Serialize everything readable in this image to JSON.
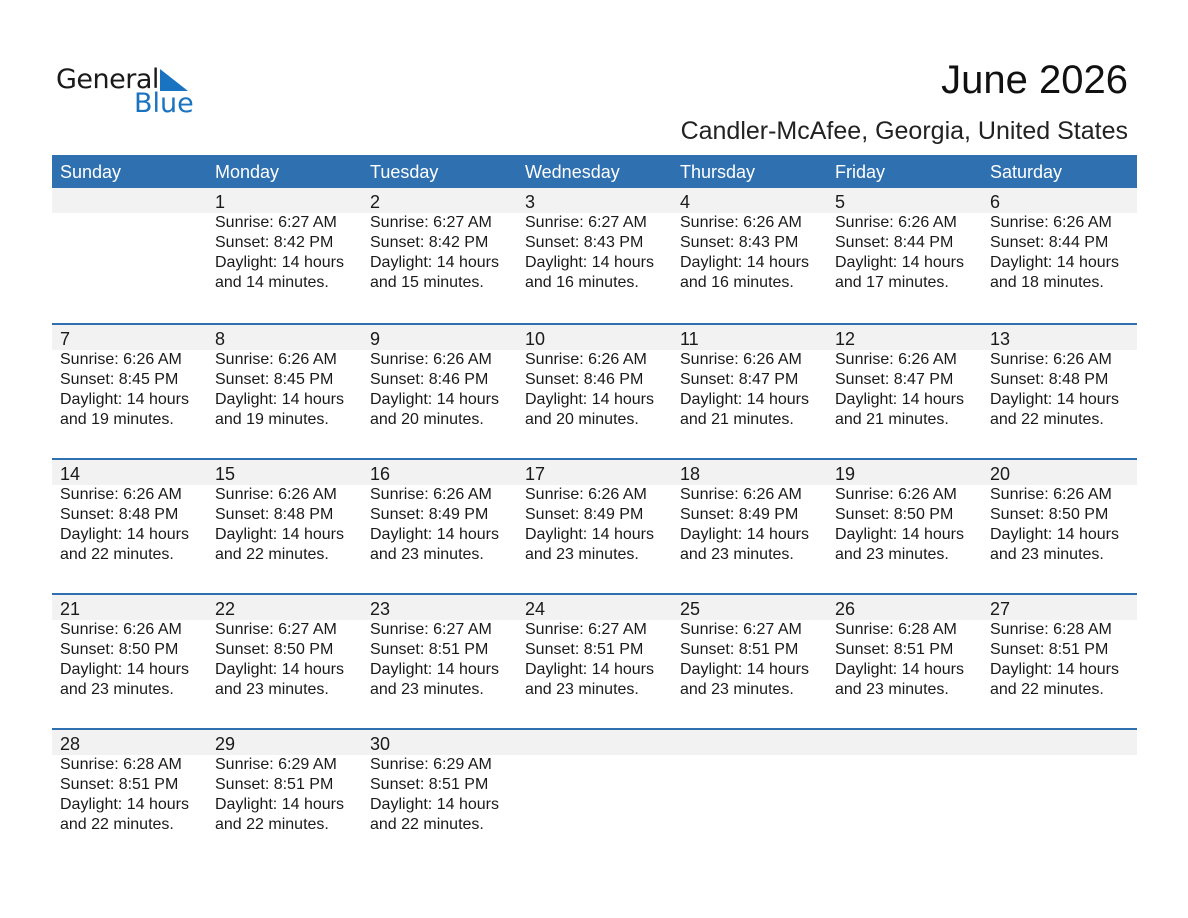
{
  "logo": {
    "general": "General",
    "blue": "Blue"
  },
  "title": "June 2026",
  "subtitle": "Candler-McAfee, Georgia, United States",
  "colors": {
    "header": "#2e70b0",
    "band": "#f2f2f2",
    "logo_blue": "#1a73c0"
  },
  "weekdays": [
    "Sunday",
    "Monday",
    "Tuesday",
    "Wednesday",
    "Thursday",
    "Friday",
    "Saturday"
  ],
  "weeks": [
    [
      null,
      {
        "day": "1",
        "sunrise": "Sunrise: 6:27 AM",
        "sunset": "Sunset: 8:42 PM",
        "daylight": "Daylight: 14 hours",
        "minutes": "and 14 minutes."
      },
      {
        "day": "2",
        "sunrise": "Sunrise: 6:27 AM",
        "sunset": "Sunset: 8:42 PM",
        "daylight": "Daylight: 14 hours",
        "minutes": "and 15 minutes."
      },
      {
        "day": "3",
        "sunrise": "Sunrise: 6:27 AM",
        "sunset": "Sunset: 8:43 PM",
        "daylight": "Daylight: 14 hours",
        "minutes": "and 16 minutes."
      },
      {
        "day": "4",
        "sunrise": "Sunrise: 6:26 AM",
        "sunset": "Sunset: 8:43 PM",
        "daylight": "Daylight: 14 hours",
        "minutes": "and 16 minutes."
      },
      {
        "day": "5",
        "sunrise": "Sunrise: 6:26 AM",
        "sunset": "Sunset: 8:44 PM",
        "daylight": "Daylight: 14 hours",
        "minutes": "and 17 minutes."
      },
      {
        "day": "6",
        "sunrise": "Sunrise: 6:26 AM",
        "sunset": "Sunset: 8:44 PM",
        "daylight": "Daylight: 14 hours",
        "minutes": "and 18 minutes."
      }
    ],
    [
      {
        "day": "7",
        "sunrise": "Sunrise: 6:26 AM",
        "sunset": "Sunset: 8:45 PM",
        "daylight": "Daylight: 14 hours",
        "minutes": "and 19 minutes."
      },
      {
        "day": "8",
        "sunrise": "Sunrise: 6:26 AM",
        "sunset": "Sunset: 8:45 PM",
        "daylight": "Daylight: 14 hours",
        "minutes": "and 19 minutes."
      },
      {
        "day": "9",
        "sunrise": "Sunrise: 6:26 AM",
        "sunset": "Sunset: 8:46 PM",
        "daylight": "Daylight: 14 hours",
        "minutes": "and 20 minutes."
      },
      {
        "day": "10",
        "sunrise": "Sunrise: 6:26 AM",
        "sunset": "Sunset: 8:46 PM",
        "daylight": "Daylight: 14 hours",
        "minutes": "and 20 minutes."
      },
      {
        "day": "11",
        "sunrise": "Sunrise: 6:26 AM",
        "sunset": "Sunset: 8:47 PM",
        "daylight": "Daylight: 14 hours",
        "minutes": "and 21 minutes."
      },
      {
        "day": "12",
        "sunrise": "Sunrise: 6:26 AM",
        "sunset": "Sunset: 8:47 PM",
        "daylight": "Daylight: 14 hours",
        "minutes": "and 21 minutes."
      },
      {
        "day": "13",
        "sunrise": "Sunrise: 6:26 AM",
        "sunset": "Sunset: 8:48 PM",
        "daylight": "Daylight: 14 hours",
        "minutes": "and 22 minutes."
      }
    ],
    [
      {
        "day": "14",
        "sunrise": "Sunrise: 6:26 AM",
        "sunset": "Sunset: 8:48 PM",
        "daylight": "Daylight: 14 hours",
        "minutes": "and 22 minutes."
      },
      {
        "day": "15",
        "sunrise": "Sunrise: 6:26 AM",
        "sunset": "Sunset: 8:48 PM",
        "daylight": "Daylight: 14 hours",
        "minutes": "and 22 minutes."
      },
      {
        "day": "16",
        "sunrise": "Sunrise: 6:26 AM",
        "sunset": "Sunset: 8:49 PM",
        "daylight": "Daylight: 14 hours",
        "minutes": "and 23 minutes."
      },
      {
        "day": "17",
        "sunrise": "Sunrise: 6:26 AM",
        "sunset": "Sunset: 8:49 PM",
        "daylight": "Daylight: 14 hours",
        "minutes": "and 23 minutes."
      },
      {
        "day": "18",
        "sunrise": "Sunrise: 6:26 AM",
        "sunset": "Sunset: 8:49 PM",
        "daylight": "Daylight: 14 hours",
        "minutes": "and 23 minutes."
      },
      {
        "day": "19",
        "sunrise": "Sunrise: 6:26 AM",
        "sunset": "Sunset: 8:50 PM",
        "daylight": "Daylight: 14 hours",
        "minutes": "and 23 minutes."
      },
      {
        "day": "20",
        "sunrise": "Sunrise: 6:26 AM",
        "sunset": "Sunset: 8:50 PM",
        "daylight": "Daylight: 14 hours",
        "minutes": "and 23 minutes."
      }
    ],
    [
      {
        "day": "21",
        "sunrise": "Sunrise: 6:26 AM",
        "sunset": "Sunset: 8:50 PM",
        "daylight": "Daylight: 14 hours",
        "minutes": "and 23 minutes."
      },
      {
        "day": "22",
        "sunrise": "Sunrise: 6:27 AM",
        "sunset": "Sunset: 8:50 PM",
        "daylight": "Daylight: 14 hours",
        "minutes": "and 23 minutes."
      },
      {
        "day": "23",
        "sunrise": "Sunrise: 6:27 AM",
        "sunset": "Sunset: 8:51 PM",
        "daylight": "Daylight: 14 hours",
        "minutes": "and 23 minutes."
      },
      {
        "day": "24",
        "sunrise": "Sunrise: 6:27 AM",
        "sunset": "Sunset: 8:51 PM",
        "daylight": "Daylight: 14 hours",
        "minutes": "and 23 minutes."
      },
      {
        "day": "25",
        "sunrise": "Sunrise: 6:27 AM",
        "sunset": "Sunset: 8:51 PM",
        "daylight": "Daylight: 14 hours",
        "minutes": "and 23 minutes."
      },
      {
        "day": "26",
        "sunrise": "Sunrise: 6:28 AM",
        "sunset": "Sunset: 8:51 PM",
        "daylight": "Daylight: 14 hours",
        "minutes": "and 23 minutes."
      },
      {
        "day": "27",
        "sunrise": "Sunrise: 6:28 AM",
        "sunset": "Sunset: 8:51 PM",
        "daylight": "Daylight: 14 hours",
        "minutes": "and 22 minutes."
      }
    ],
    [
      {
        "day": "28",
        "sunrise": "Sunrise: 6:28 AM",
        "sunset": "Sunset: 8:51 PM",
        "daylight": "Daylight: 14 hours",
        "minutes": "and 22 minutes."
      },
      {
        "day": "29",
        "sunrise": "Sunrise: 6:29 AM",
        "sunset": "Sunset: 8:51 PM",
        "daylight": "Daylight: 14 hours",
        "minutes": "and 22 minutes."
      },
      {
        "day": "30",
        "sunrise": "Sunrise: 6:29 AM",
        "sunset": "Sunset: 8:51 PM",
        "daylight": "Daylight: 14 hours",
        "minutes": "and 22 minutes."
      },
      null,
      null,
      null,
      null
    ]
  ]
}
